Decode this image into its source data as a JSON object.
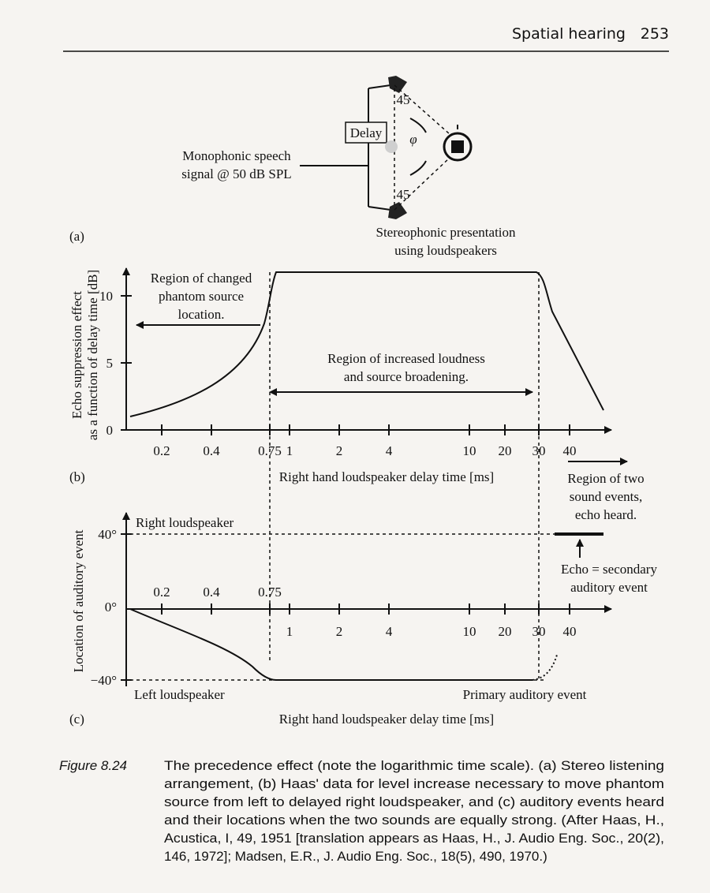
{
  "header": {
    "section": "Spatial hearing",
    "page": "253"
  },
  "panel_a": {
    "label": "(a)",
    "delay_box": "Delay",
    "source_label": [
      "Monophonic speech",
      "signal @ 50 dB SPL"
    ],
    "angles": [
      "45",
      "45"
    ],
    "head_angle": "φ",
    "caption": [
      "Stereophonic presentation",
      "using loudspeakers"
    ]
  },
  "panel_b": {
    "label": "(b)",
    "y_title": [
      "Echo suppression effect",
      "as a function of delay time [dB]"
    ],
    "y_tick_labels": [
      "0",
      "5",
      "10"
    ],
    "x_tick_labels": [
      "0.2",
      "0.4",
      "0.75",
      "1",
      "2",
      "4",
      "10",
      "20",
      "30",
      "40"
    ],
    "x_title": "Right hand loudspeaker delay time [ms]",
    "note_changed": [
      "Region of changed",
      "phantom source",
      "location."
    ],
    "note_loudness": [
      "Region of increased loudness",
      "and source broadening."
    ],
    "note_echo": [
      "Region of two",
      "sound events,",
      "echo heard."
    ]
  },
  "panel_c": {
    "label": "(c)",
    "y_title": "Location of auditory event",
    "y_tick_labels": [
      "40°",
      "0°",
      "−40°"
    ],
    "x_tick_labels": [
      "0.2",
      "0.4",
      "0.75",
      "1",
      "2",
      "4",
      "10",
      "20",
      "30",
      "40"
    ],
    "x_title": "Right hand loudspeaker delay time [ms]",
    "right_label": "Right loudspeaker",
    "left_label": "Left loudspeaker",
    "primary_label": "Primary auditory event",
    "echo_label": [
      "Echo = secondary",
      "auditory event"
    ]
  },
  "caption": {
    "label": "Figure 8.24",
    "lines": [
      "The precedence effect (note the logarithmic time scale). (a) Stereo listening",
      "arrangement, (b) Haas' data for level increase necessary to move phantom",
      "source from left to delayed right loudspeaker, and (c) auditory events heard",
      "and their locations when the two sounds are equally strong. (After Haas, H.,",
      "Acustica, I, 49, 1951 [translation appears as Haas, H., J. Audio Eng. Soc., 20(2),",
      "146, 1972]; Madsen, E.R., J. Audio Eng. Soc., 18(5), 490, 1970.)"
    ]
  }
}
